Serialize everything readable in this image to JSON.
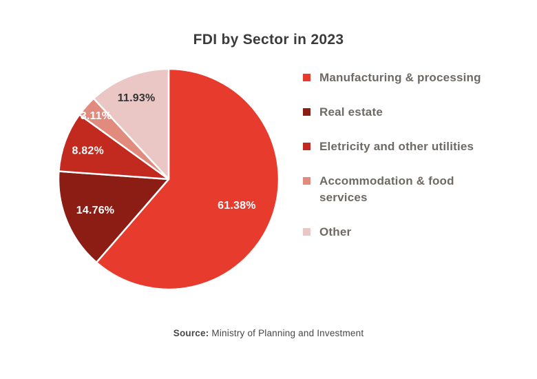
{
  "title": "FDI by Sector in 2023",
  "source": {
    "label": "Source:",
    "text": "Ministry of Planning and Investment"
  },
  "chart_data": {
    "type": "pie",
    "title": "FDI by Sector in 2023",
    "unit": "%",
    "direction": "clockwise",
    "start_angle_deg": 0,
    "legend_position": "right",
    "slices": [
      {
        "label": "Manufacturing & processing",
        "value": 61.38,
        "display": "61.38%",
        "color": "#E73B2D",
        "label_color": "#FFFFFF"
      },
      {
        "label": "Real estate",
        "value": 14.76,
        "display": "14.76%",
        "color": "#8C1D15",
        "label_color": "#FFFFFF"
      },
      {
        "label": "Eletricity and other utilities",
        "value": 8.82,
        "display": "8.82%",
        "color": "#C32A1F",
        "label_color": "#FFFFFF"
      },
      {
        "label": "Accommodation & food services",
        "value": 3.11,
        "display": "3.11%",
        "color": "#E18A7E",
        "label_color": "#FFFFFF"
      },
      {
        "label": "Other",
        "value": 11.93,
        "display": "11.93%",
        "color": "#EAC7C4",
        "label_color": "#333333"
      }
    ]
  }
}
